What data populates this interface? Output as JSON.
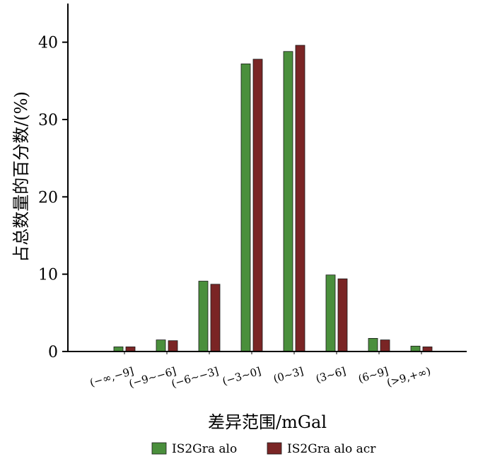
{
  "chart_data": {
    "type": "bar",
    "title": "",
    "xlabel": "差异范围/mGal",
    "ylabel": "占总数量的百分数/(%)",
    "categories": [
      "(−∞,−9]",
      "(−9~−6]",
      "(−6~−3]",
      "(−3~0]",
      "(0~3]",
      "(3~6]",
      "(6~9]",
      "(>9,+∞)"
    ],
    "ylim": [
      0,
      45
    ],
    "yticks": [
      0,
      10,
      20,
      30,
      40
    ],
    "grid": false,
    "legend": "bottom",
    "series": [
      {
        "name": "IS2Gra alo",
        "color": "#4a8f3c",
        "values": [
          0.6,
          1.5,
          9.1,
          37.2,
          38.8,
          9.9,
          1.7,
          0.7
        ]
      },
      {
        "name": "IS2Gra alo acr",
        "color": "#7a2525",
        "values": [
          0.6,
          1.4,
          8.7,
          37.8,
          39.6,
          9.4,
          1.5,
          0.6
        ]
      }
    ]
  }
}
